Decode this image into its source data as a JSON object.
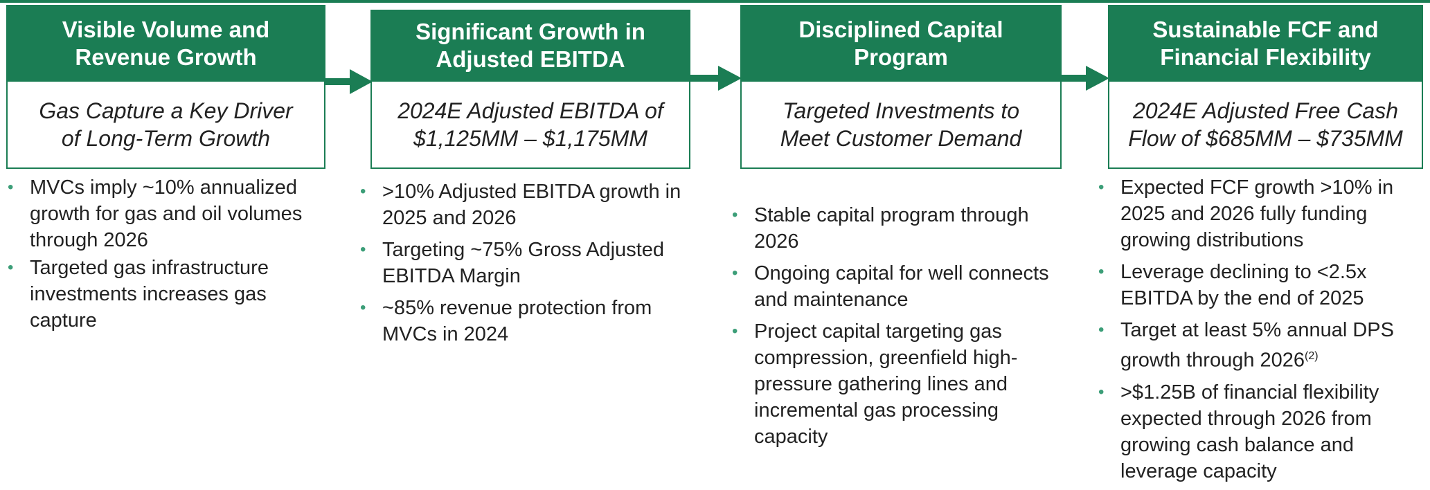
{
  "columns": [
    {
      "title_lines": [
        "Visible Volume and",
        "Revenue Growth"
      ],
      "subtitle_lines": [
        "Gas Capture a Key Driver",
        "of Long-Term Growth"
      ],
      "bullets": [
        {
          "text": "MVCs imply ~10% annualized growth for gas and oil volumes through 2026"
        },
        {
          "text": "Targeted gas infrastructure investments increases gas capture"
        }
      ]
    },
    {
      "title_lines": [
        "Significant Growth in",
        "Adjusted EBITDA"
      ],
      "subtitle_lines": [
        "2024E Adjusted EBITDA of",
        "$1,125MM – $1,175MM"
      ],
      "bullets": [
        {
          "text": ">10% Adjusted EBITDA growth in 2025 and 2026"
        },
        {
          "text": "Targeting ~75% Gross Adjusted EBITDA Margin"
        },
        {
          "text": "~85% revenue protection from MVCs in 2024"
        }
      ]
    },
    {
      "title_lines": [
        "Disciplined Capital",
        "Program"
      ],
      "subtitle_lines": [
        "Targeted Investments to",
        "Meet Customer Demand"
      ],
      "bullets": [
        {
          "text": "Stable capital program through 2026"
        },
        {
          "text": "Ongoing capital for well connects and maintenance"
        },
        {
          "text": "Project capital targeting gas compression, greenfield high-pressure gathering lines and incremental gas processing capacity"
        }
      ]
    },
    {
      "title_lines": [
        "Sustainable FCF and",
        "Financial Flexibility"
      ],
      "subtitle_lines": [
        "2024E Adjusted Free Cash",
        "Flow of $685MM – $735MM"
      ],
      "bullets": [
        {
          "text": "Expected FCF growth >10% in 2025 and 2026 fully funding growing distributions"
        },
        {
          "text": "Leverage declining to <2.5x EBITDA by the end of 2025"
        },
        {
          "text": "Target at least 5% annual DPS growth through 2026",
          "sup": "(2)"
        },
        {
          "text": ">$1.25B of financial flexibility expected through 2026 from growing cash balance and leverage capacity"
        }
      ]
    }
  ]
}
